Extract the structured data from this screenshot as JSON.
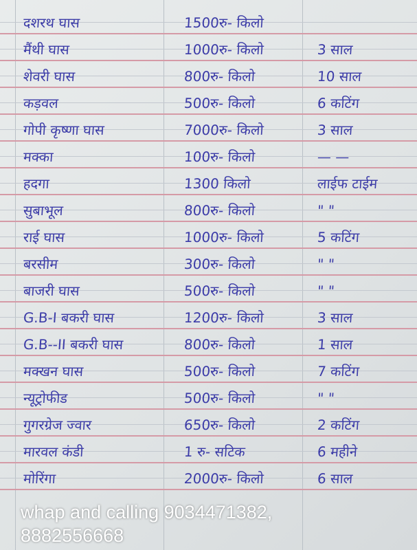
{
  "rows": [
    {
      "name": "दशरथ घास",
      "price": "1500रु- किलो",
      "note": ""
    },
    {
      "name": "मैंथी घास",
      "price": "1000रु- किलो",
      "note": "3 साल"
    },
    {
      "name": "शेवरी घास",
      "price": "800रु- किलो",
      "note": "10 साल"
    },
    {
      "name": "कड़वल",
      "price": "500रु- किलो",
      "note": "6 कटिंग"
    },
    {
      "name": "गोपी कृष्णा घास",
      "price": "7000रु- किलो",
      "note": "3 साल"
    },
    {
      "name": "मक्का",
      "price": "100रु- किलो",
      "note": "— —"
    },
    {
      "name": "हदगा",
      "price": "1300 किलो",
      "note": "लाईफ टाईम"
    },
    {
      "name": "सुबाभूल",
      "price": "800रु- किलो",
      "note": "\"  \""
    },
    {
      "name": "राई घास",
      "price": "1000रु- किलो",
      "note": "5 कटिंग"
    },
    {
      "name": "बरसीम",
      "price": "300रु- किलो",
      "note": "\"  \""
    },
    {
      "name": "बाजरी घास",
      "price": "500रु- किलो",
      "note": "\"  \""
    },
    {
      "name": "G.B-I बकरी घास",
      "price": "1200रु- किलो",
      "note": "3 साल"
    },
    {
      "name": "G.B--II बकरी घास",
      "price": "800रु- किलो",
      "note": "1 साल"
    },
    {
      "name": "मक्खन घास",
      "price": "500रु- किलो",
      "note": "7 कटिंग"
    },
    {
      "name": "न्यूट्रोफीड",
      "price": "500रु- किलो",
      "note": "\"  \""
    },
    {
      "name": "गुगरग्रेज ज्वार",
      "price": "650रु- किलो",
      "note": "2 कटिंग"
    },
    {
      "name": "मारवल कंडी",
      "price": "1 रु- सटिक",
      "note": "6 महीने"
    },
    {
      "name": "मोरिंगा",
      "price": "2000रु- किलो",
      "note": "6 साल"
    }
  ],
  "watermark": {
    "line1": "whap and calling 9034471382,",
    "line2": "8882556668"
  },
  "colors": {
    "ink": "#3c3ca8",
    "paper": "#e4e7e8",
    "rule": "#d59aa6"
  }
}
